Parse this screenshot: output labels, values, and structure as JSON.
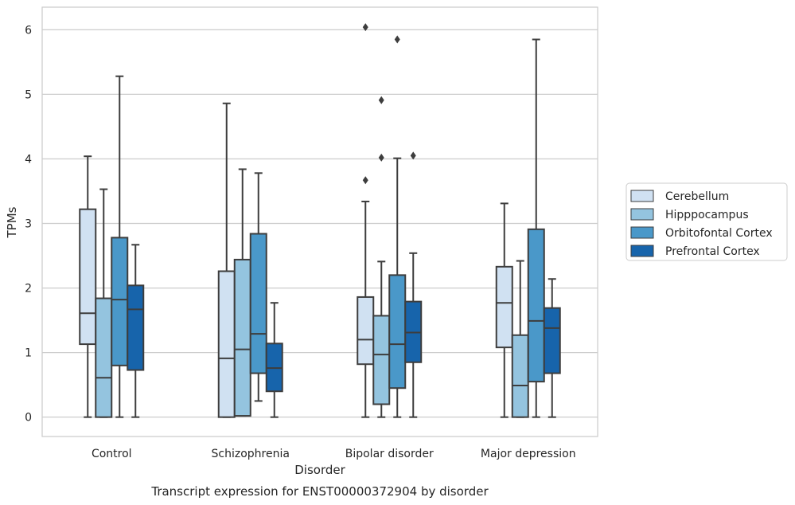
{
  "chart_data": {
    "type": "box",
    "title": "",
    "caption": "Transcript expression for ENST00000372904 by disorder",
    "xlabel": "Disorder",
    "ylabel": "TPMs",
    "ylim": [
      -0.3,
      6.35
    ],
    "yticks": [
      "0",
      "1",
      "2",
      "3",
      "4",
      "5",
      "6"
    ],
    "grid": "horizontal",
    "legend_position": "right",
    "categories": [
      "Control",
      "Schizophrenia",
      "Bipolar disorder",
      "Major depression"
    ],
    "series": [
      {
        "name": "Cerebellum",
        "color": "#d0e1f2",
        "boxes": [
          {
            "min": 0,
            "q1": 1.13,
            "median": 1.61,
            "q3": 3.22,
            "max": 4.04,
            "outliers": []
          },
          {
            "min": 0,
            "q1": 0,
            "median": 0.91,
            "q3": 2.26,
            "max": 4.86,
            "outliers": []
          },
          {
            "min": 0,
            "q1": 0.82,
            "median": 1.2,
            "q3": 1.86,
            "max": 3.34,
            "outliers": [
              3.67,
              6.04
            ]
          },
          {
            "min": 0,
            "q1": 1.08,
            "median": 1.77,
            "q3": 2.33,
            "max": 3.31,
            "outliers": []
          }
        ]
      },
      {
        "name": "Hipppocampus",
        "color": "#94c4df",
        "boxes": [
          {
            "min": 0,
            "q1": 0,
            "median": 0.61,
            "q3": 1.84,
            "max": 3.53,
            "outliers": []
          },
          {
            "min": 0.02,
            "q1": 0.02,
            "median": 1.05,
            "q3": 2.44,
            "max": 3.84,
            "outliers": []
          },
          {
            "min": 0,
            "q1": 0.2,
            "median": 0.97,
            "q3": 1.57,
            "max": 2.41,
            "outliers": [
              4.02,
              4.91
            ]
          },
          {
            "min": 0,
            "q1": 0,
            "median": 0.49,
            "q3": 1.27,
            "max": 2.42,
            "outliers": []
          }
        ]
      },
      {
        "name": "Orbitofontal Cortex",
        "color": "#4a98c9",
        "boxes": [
          {
            "min": 0,
            "q1": 0.8,
            "median": 1.82,
            "q3": 2.78,
            "max": 5.28,
            "outliers": []
          },
          {
            "min": 0.25,
            "q1": 0.68,
            "median": 1.29,
            "q3": 2.84,
            "max": 3.78,
            "outliers": []
          },
          {
            "min": 0,
            "q1": 0.45,
            "median": 1.13,
            "q3": 2.2,
            "max": 4.01,
            "outliers": [
              5.85
            ]
          },
          {
            "min": 0,
            "q1": 0.55,
            "median": 1.49,
            "q3": 2.91,
            "max": 5.85,
            "outliers": []
          }
        ]
      },
      {
        "name": "Prefrontal Cortex",
        "color": "#1764ab",
        "boxes": [
          {
            "min": 0,
            "q1": 0.73,
            "median": 1.67,
            "q3": 2.04,
            "max": 2.67,
            "outliers": []
          },
          {
            "min": 0,
            "q1": 0.4,
            "median": 0.76,
            "q3": 1.14,
            "max": 1.77,
            "outliers": []
          },
          {
            "min": 0,
            "q1": 0.85,
            "median": 1.31,
            "q3": 1.79,
            "max": 2.54,
            "outliers": [
              4.05
            ]
          },
          {
            "min": 0,
            "q1": 0.68,
            "median": 1.38,
            "q3": 1.69,
            "max": 2.14,
            "outliers": []
          }
        ]
      }
    ]
  }
}
